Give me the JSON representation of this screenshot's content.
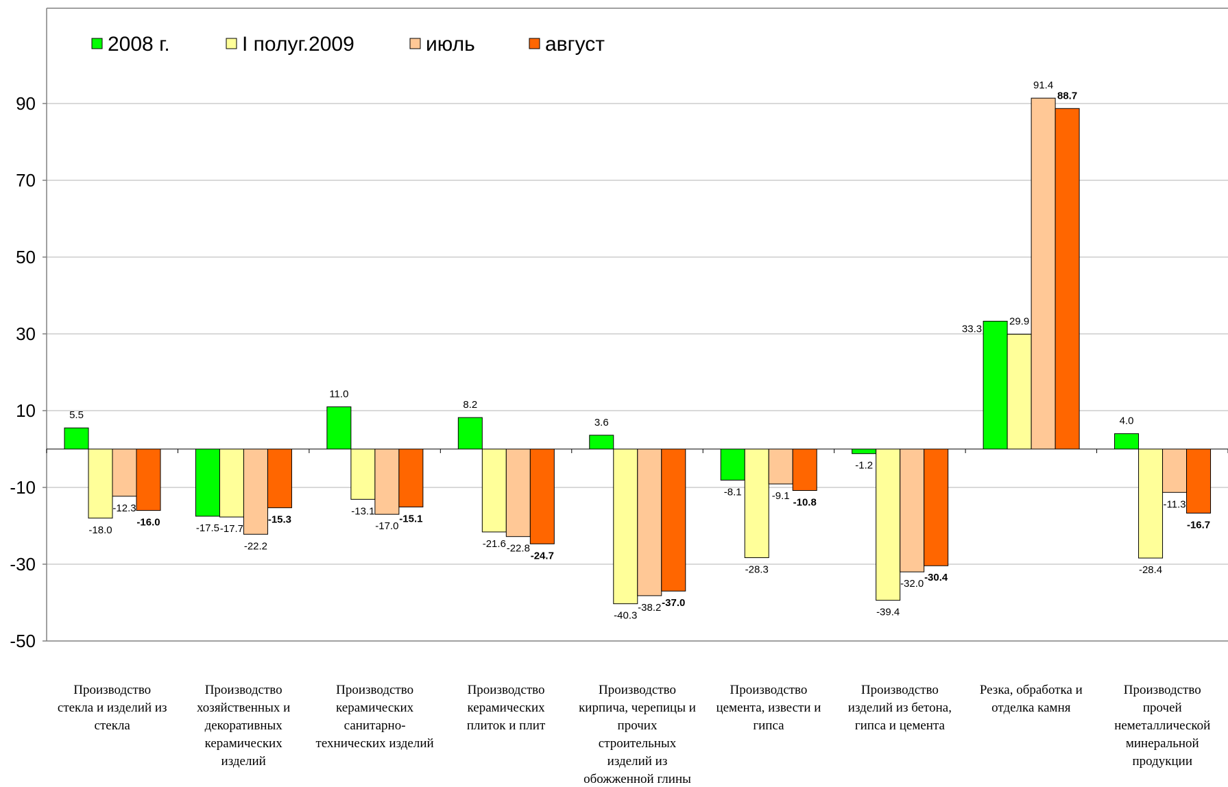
{
  "chart_data": {
    "type": "bar",
    "title": "",
    "xlabel": "",
    "ylabel": "",
    "ylim": [
      -50,
      90
    ],
    "yticks": [
      90,
      70,
      50,
      30,
      10,
      -10,
      -30,
      -50
    ],
    "grid": true,
    "legend_position": "top-left",
    "categories": [
      [
        "Производство",
        "стекла и изделий из",
        "стекла"
      ],
      [
        "Производство",
        "хозяйственных и",
        "декоративных",
        "керамических",
        "изделий"
      ],
      [
        "Производство",
        "керамических",
        "санитарно-",
        "технических изделий"
      ],
      [
        "Производство",
        "керамических",
        "плиток и плит"
      ],
      [
        "Производство",
        "кирпича, черепицы и",
        "прочих",
        "строительных",
        "изделий из",
        "обожженной глины"
      ],
      [
        "Производство",
        "цемента, извести и",
        "гипса"
      ],
      [
        "Производство",
        "изделий из бетона,",
        "гипса и цемента"
      ],
      [
        "Резка, обработка и",
        "отделка камня"
      ],
      [
        "Производство",
        "прочей",
        "неметаллической",
        "минеральной",
        "продукции"
      ]
    ],
    "series": [
      {
        "name": "2008 г.",
        "color": "#00ff00",
        "bold_labels": false,
        "values": [
          5.5,
          -17.5,
          11.0,
          8.2,
          3.6,
          -8.1,
          -1.2,
          33.3,
          4.0
        ],
        "labels": [
          "5.5",
          "-17.5",
          "11.0",
          "8.2",
          "3.6",
          "-8.1",
          "-1.2",
          "33.3",
          "4.0"
        ]
      },
      {
        "name": "I полуг.2009",
        "color": "#ffff99",
        "bold_labels": false,
        "values": [
          -18.0,
          -17.7,
          -13.1,
          -21.6,
          -40.3,
          -28.3,
          -39.4,
          29.9,
          -28.4
        ],
        "labels": [
          "-18.0",
          "-17.7",
          "-13.1",
          "-21.6",
          "-40.3",
          "-28.3",
          "-39.4",
          "29.9",
          "-28.4"
        ]
      },
      {
        "name": "июль",
        "color": "#ffc896",
        "bold_labels": false,
        "values": [
          -12.3,
          -22.2,
          -17.0,
          -22.8,
          -38.2,
          -9.1,
          -32.0,
          91.4,
          -11.3
        ],
        "labels": [
          "-12.3",
          "-22.2",
          "-17.0",
          "-22.8",
          "-38.2",
          "-9.1",
          "-32.0",
          "91.4",
          "-11.3"
        ]
      },
      {
        "name": "август",
        "color": "#ff6600",
        "bold_labels": true,
        "values": [
          -16.0,
          -15.3,
          -15.1,
          -24.7,
          -37.0,
          -10.8,
          -30.4,
          88.7,
          -16.7
        ],
        "labels": [
          "-16.0",
          "-15.3",
          "-15.1",
          "-24.7",
          "-37.0",
          "-10.8",
          "-30.4",
          "88.7",
          "-16.7"
        ]
      }
    ]
  }
}
